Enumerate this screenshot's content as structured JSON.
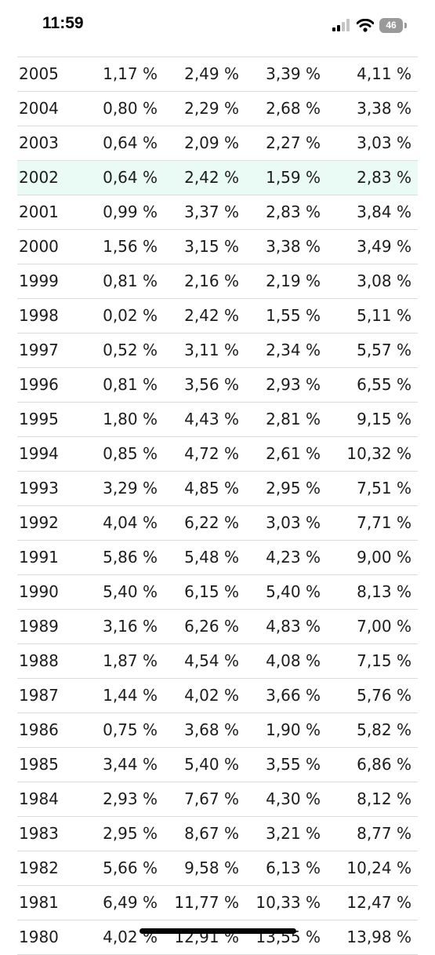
{
  "status_bar": {
    "time": "11:59",
    "battery": "46"
  },
  "table": {
    "rows": [
      {
        "year": "2005",
        "v1": "1,17 %",
        "v2": "2,49 %",
        "v3": "3,39 %",
        "v4": "4,11 %"
      },
      {
        "year": "2004",
        "v1": "0,80 %",
        "v2": "2,29 %",
        "v3": "2,68 %",
        "v4": "3,38 %"
      },
      {
        "year": "2003",
        "v1": "0,64 %",
        "v2": "2,09 %",
        "v3": "2,27 %",
        "v4": "3,03 %"
      },
      {
        "year": "2002",
        "v1": "0,64 %",
        "v2": "2,42 %",
        "v3": "1,59 %",
        "v4": "2,83 %",
        "highlighted": true
      },
      {
        "year": "2001",
        "v1": "0,99 %",
        "v2": "3,37 %",
        "v3": "2,83 %",
        "v4": "3,84 %"
      },
      {
        "year": "2000",
        "v1": "1,56 %",
        "v2": "3,15 %",
        "v3": "3,38 %",
        "v4": "3,49 %"
      },
      {
        "year": "1999",
        "v1": "0,81 %",
        "v2": "2,16 %",
        "v3": "2,19 %",
        "v4": "3,08 %"
      },
      {
        "year": "1998",
        "v1": "0,02 %",
        "v2": "2,42 %",
        "v3": "1,55 %",
        "v4": "5,11 %"
      },
      {
        "year": "1997",
        "v1": "0,52 %",
        "v2": "3,11 %",
        "v3": "2,34 %",
        "v4": "5,57 %"
      },
      {
        "year": "1996",
        "v1": "0,81 %",
        "v2": "3,56 %",
        "v3": "2,93 %",
        "v4": "6,55 %"
      },
      {
        "year": "1995",
        "v1": "1,80 %",
        "v2": "4,43 %",
        "v3": "2,81 %",
        "v4": "9,15 %"
      },
      {
        "year": "1994",
        "v1": "0,85 %",
        "v2": "4,72 %",
        "v3": "2,61 %",
        "v4": "10,32 %"
      },
      {
        "year": "1993",
        "v1": "3,29 %",
        "v2": "4,85 %",
        "v3": "2,95 %",
        "v4": "7,51 %"
      },
      {
        "year": "1992",
        "v1": "4,04 %",
        "v2": "6,22 %",
        "v3": "3,03 %",
        "v4": "7,71 %"
      },
      {
        "year": "1991",
        "v1": "5,86 %",
        "v2": "5,48 %",
        "v3": "4,23 %",
        "v4": "9,00 %"
      },
      {
        "year": "1990",
        "v1": "5,40 %",
        "v2": "6,15 %",
        "v3": "5,40 %",
        "v4": "8,13 %"
      },
      {
        "year": "1989",
        "v1": "3,16 %",
        "v2": "6,26 %",
        "v3": "4,83 %",
        "v4": "7,00 %"
      },
      {
        "year": "1988",
        "v1": "1,87 %",
        "v2": "4,54 %",
        "v3": "4,08 %",
        "v4": "7,15 %"
      },
      {
        "year": "1987",
        "v1": "1,44 %",
        "v2": "4,02 %",
        "v3": "3,66 %",
        "v4": "5,76 %"
      },
      {
        "year": "1986",
        "v1": "0,75 %",
        "v2": "3,68 %",
        "v3": "1,90 %",
        "v4": "5,82 %"
      },
      {
        "year": "1985",
        "v1": "3,44 %",
        "v2": "5,40 %",
        "v3": "3,55 %",
        "v4": "6,86 %"
      },
      {
        "year": "1984",
        "v1": "2,93 %",
        "v2": "7,67 %",
        "v3": "4,30 %",
        "v4": "8,12 %"
      },
      {
        "year": "1983",
        "v1": "2,95 %",
        "v2": "8,67 %",
        "v3": "3,21 %",
        "v4": "8,77 %"
      },
      {
        "year": "1982",
        "v1": "5,66 %",
        "v2": "9,58 %",
        "v3": "6,13 %",
        "v4": "10,24 %"
      },
      {
        "year": "1981",
        "v1": "6,49 %",
        "v2": "11,77 %",
        "v3": "10,33 %",
        "v4": "12,47 %"
      },
      {
        "year": "1980",
        "v1": "4,02 %",
        "v2": "12,91 %",
        "v3": "13,55 %",
        "v4": "13,98 %"
      }
    ]
  },
  "colors": {
    "highlight_row": "#eafaf5",
    "divider": "#dcdcdc",
    "text": "#1c1c1c"
  }
}
